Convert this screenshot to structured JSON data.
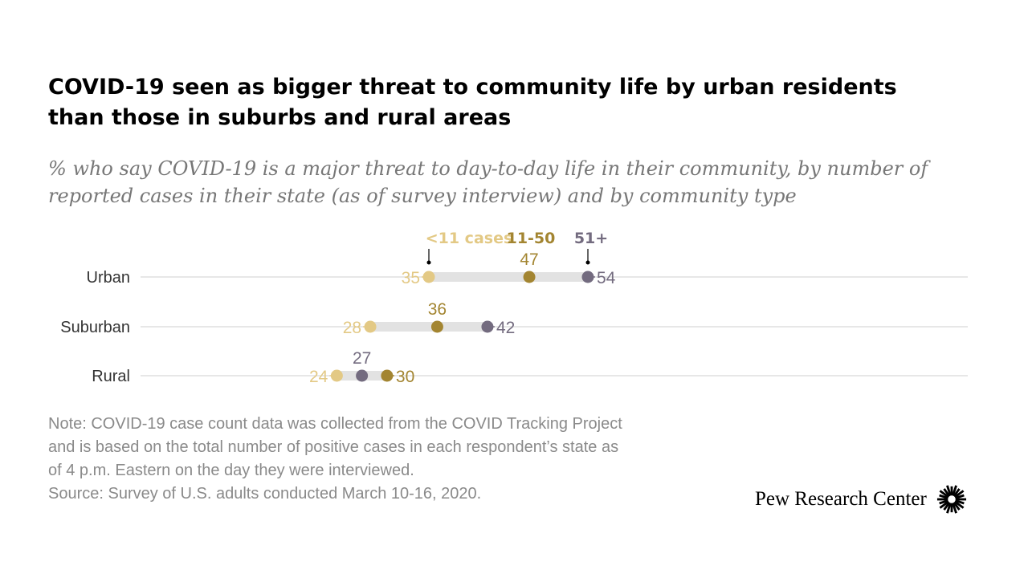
{
  "title_line1": "COVID-19 seen as bigger threat to community life by urban residents",
  "title_line2": "than those in suburbs and rural areas",
  "subtitle_line1": "% who say COVID-19 is a major threat to day-to-day life in their community, by number of",
  "subtitle_line2": "reported cases in their state (as of survey interview) and by community type",
  "note_lines": [
    "Note: COVID-19 case count data was collected from the COVID Tracking Project",
    "and is based on the total number of positive cases in each respondent’s state as",
    "of 4 p.m. Eastern on the day they were interviewed.",
    "Source: Survey of U.S. adults conducted March 10-16, 2020."
  ],
  "brand": "Pew Research Center",
  "logo_icon": "pew-sunburst-icon",
  "colors": {
    "low": "#e3c985",
    "mid": "#a38531",
    "high": "#736b7f",
    "range": "#e2e2e2",
    "axis": "#cfcfcf",
    "label": "#333333"
  },
  "chart_data": {
    "type": "dot-range",
    "categories": [
      "Urban",
      "Suburban",
      "Rural"
    ],
    "series": [
      {
        "name": "<11 cases",
        "color": "#e3c985",
        "values": [
          35,
          28,
          24
        ]
      },
      {
        "name": "11-50",
        "color": "#a38531",
        "values": [
          47,
          36,
          30
        ]
      },
      {
        "name": "51+",
        "color": "#736b7f",
        "values": [
          54,
          42,
          27
        ]
      }
    ],
    "legend_placement": "top, labels above Urban row",
    "grid": false
  }
}
